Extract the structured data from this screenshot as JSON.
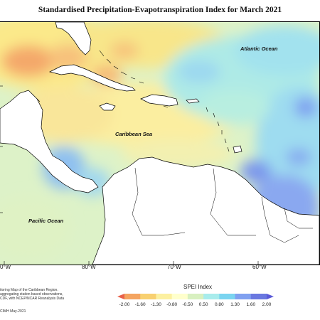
{
  "title": "Standardised Precipitation-Evapotranspiration Index for March 2021",
  "map": {
    "labels": {
      "atlantic": "Atlantic Ocean",
      "caribbean": "Caribbean Sea",
      "pacific": "Pacific Ocean"
    },
    "longitude_ticks": [
      "0°W",
      "80°W",
      "70°W",
      "60°W"
    ]
  },
  "credits": {
    "line1": "itoring Map of the Caribbean Region.",
    "line2": "aggregating station based observations,",
    "line3": "CDF, with NCEP/NCAR Reanalysis Data",
    "line4": "CIMH May-2021"
  },
  "legend": {
    "title": "SPEI Index",
    "ticks": [
      "-2.00",
      "-1.60",
      "-1.30",
      "-0.80",
      "-0.50",
      "0.50",
      "0.80",
      "1.30",
      "1.60",
      "2.00"
    ],
    "colors": [
      "#e8614a",
      "#f4a460",
      "#f8d070",
      "#fcf0a0",
      "#ffffcc",
      "#d8f0c0",
      "#a8ecec",
      "#7ad4f0",
      "#80a0f0",
      "#6a78e0",
      "#5a5ad8"
    ]
  }
}
